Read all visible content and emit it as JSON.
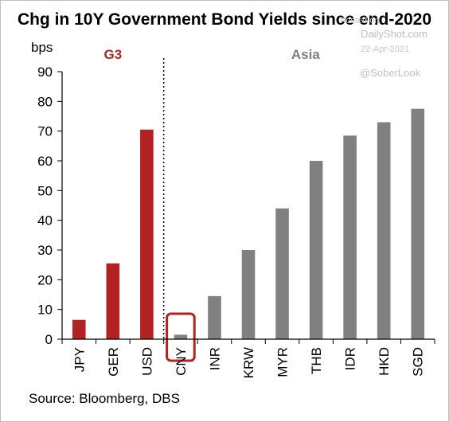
{
  "chart_data": {
    "type": "bar",
    "title": "Chg in 10Y Government Bond Yields since end-2020",
    "ylabel": "bps",
    "ylim": [
      0,
      90
    ],
    "yticks": [
      0,
      10,
      20,
      30,
      40,
      50,
      60,
      70,
      80,
      90
    ],
    "grid": false,
    "categories": [
      "JPY",
      "GER",
      "USD",
      "CNY",
      "INR",
      "KRW",
      "MYR",
      "THB",
      "IDR",
      "HKD",
      "SGD"
    ],
    "values": [
      6.5,
      25.5,
      70.5,
      1.5,
      14.5,
      30,
      44,
      60,
      68.5,
      73,
      77.5
    ],
    "groups": [
      {
        "label": "G3",
        "categories": [
          "JPY",
          "GER",
          "USD"
        ],
        "color": "#b22222"
      },
      {
        "label": "Asia",
        "categories": [
          "CNY",
          "INR",
          "KRW",
          "MYR",
          "THB",
          "IDR",
          "HKD",
          "SGD"
        ],
        "color": "#808080"
      }
    ],
    "highlighted_category": "CNY",
    "highlight_color": "#b22222",
    "source": "Source: Bloomberg, DBS"
  },
  "watermark": {
    "site": "DailyShot.com",
    "date": "22-Apr-2021",
    "handle": "@SoberLook",
    "faint": "Posted on"
  }
}
